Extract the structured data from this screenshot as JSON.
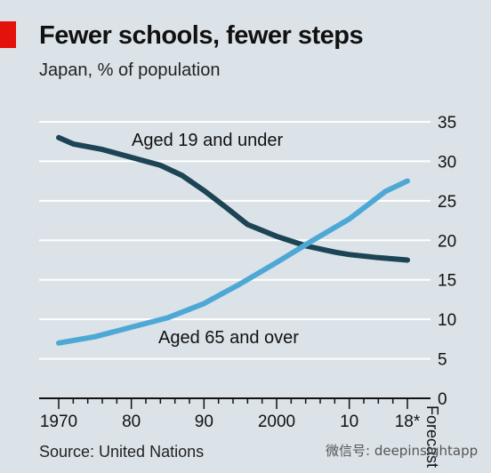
{
  "title": "Fewer schools, fewer steps",
  "subtitle": "Japan, % of population",
  "source": "Source: United Nations",
  "watermark": "微信号: deepinsightapp",
  "colors": {
    "background": "#dbe3e8",
    "accent": "#e3120b",
    "series_young": "#1c4454",
    "series_old": "#4ea8d6",
    "grid": "#ffffff",
    "axis": "#111111"
  },
  "chart_data": {
    "type": "line",
    "x_ticks": [
      "1970",
      "80",
      "90",
      "2000",
      "10",
      "18*"
    ],
    "forecast_label": "Forecast",
    "ylim": [
      0,
      35
    ],
    "yticks": [
      0,
      5,
      10,
      15,
      20,
      25,
      30,
      35
    ],
    "grid": true,
    "series": [
      {
        "name": "Aged 19 and under",
        "x": [
          1970,
          1972,
          1976,
          1980,
          1984,
          1987,
          1990,
          1993,
          1996,
          2000,
          2004,
          2008,
          2010,
          2014,
          2018
        ],
        "values": [
          33,
          32.2,
          31.5,
          30.5,
          29.5,
          28.2,
          26.3,
          24.2,
          22.0,
          20.5,
          19.3,
          18.5,
          18.2,
          17.8,
          17.5
        ]
      },
      {
        "name": "Aged 65 and over",
        "x": [
          1970,
          1975,
          1980,
          1985,
          1990,
          1995,
          2000,
          2005,
          2010,
          2013,
          2015,
          2018
        ],
        "values": [
          7.0,
          7.8,
          9.0,
          10.2,
          12.0,
          14.5,
          17.2,
          20.0,
          22.7,
          24.8,
          26.2,
          27.5
        ]
      }
    ]
  }
}
